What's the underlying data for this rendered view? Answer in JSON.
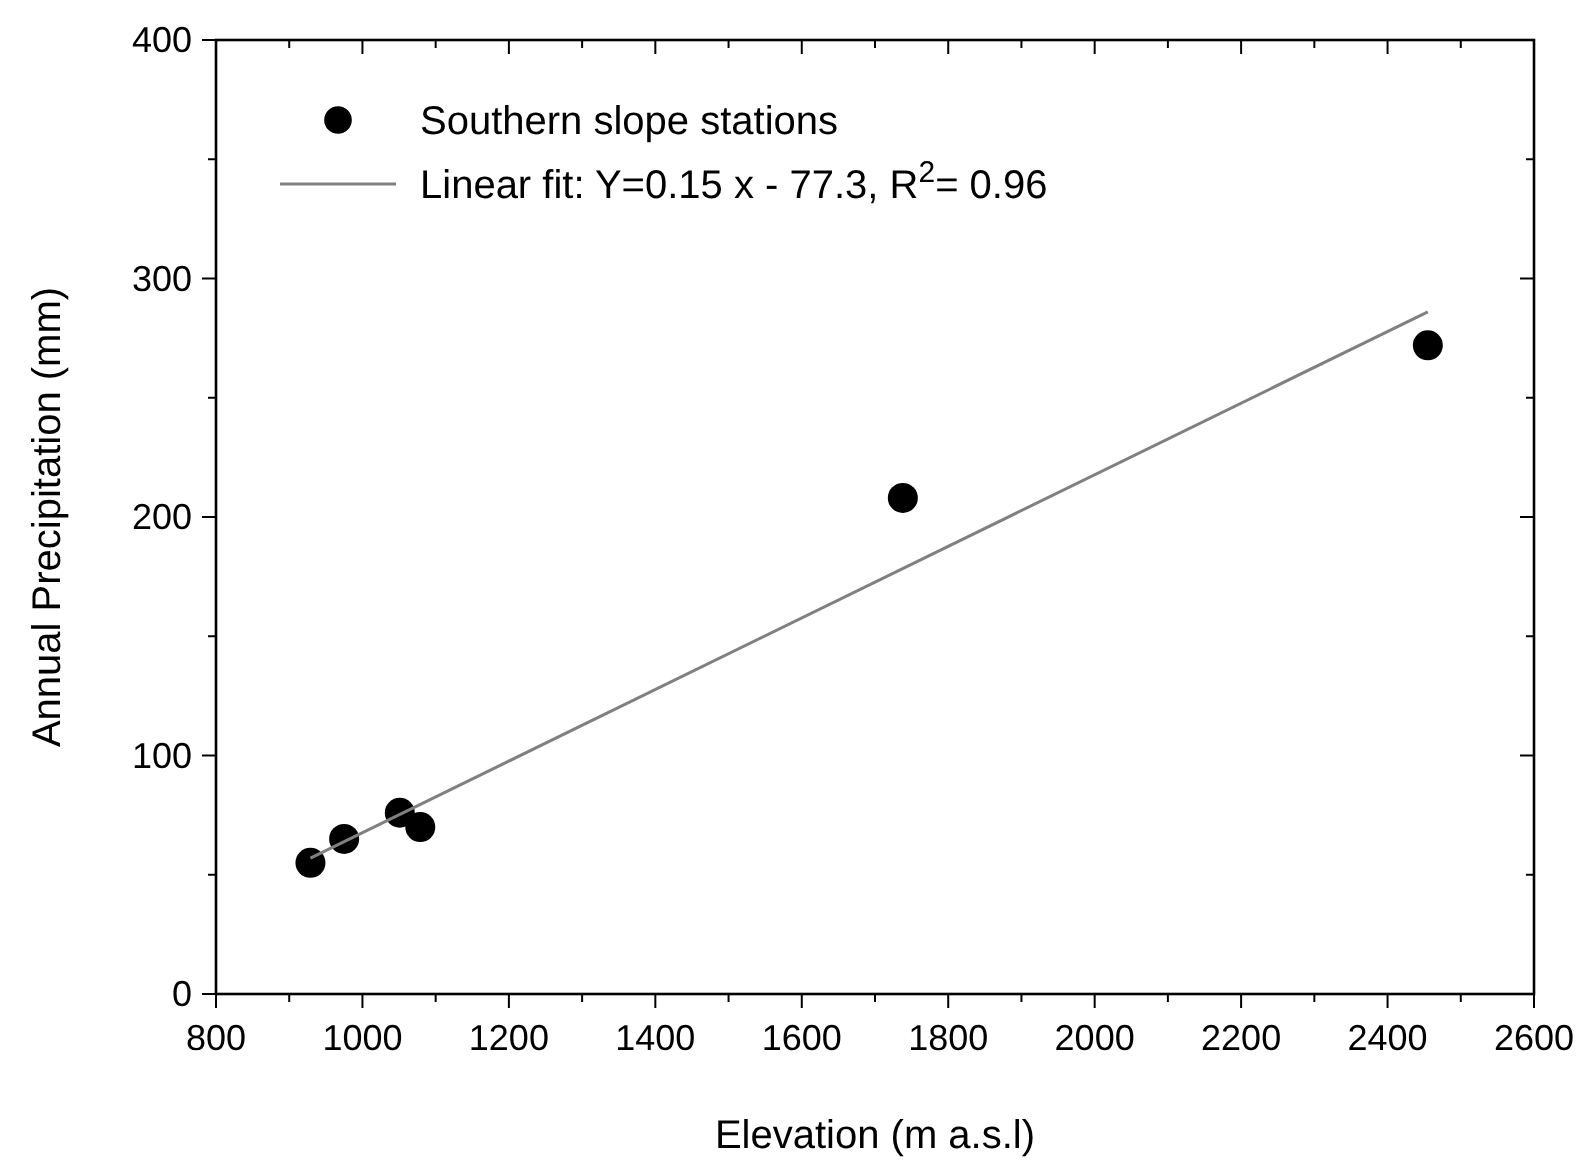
{
  "chart_data": {
    "type": "scatter",
    "xlabel": "Elevation (m  a.s.l)",
    "ylabel": "Annual Precipitation (mm)",
    "xlim": [
      800,
      2600
    ],
    "ylim": [
      0,
      400
    ],
    "xticks": [
      800,
      {
        "value": 900,
        "label": null
      },
      1000,
      {
        "value": 1100,
        "label": null
      },
      1200,
      {
        "value": 1300,
        "label": null
      },
      1400,
      {
        "value": 1500,
        "label": null
      },
      1600,
      {
        "value": 1700,
        "label": null
      },
      1800,
      {
        "value": 1900,
        "label": null
      },
      2000,
      {
        "value": 2100,
        "label": null
      },
      2200,
      {
        "value": 2300,
        "label": null
      },
      2400,
      {
        "value": 2500,
        "label": null
      },
      2600
    ],
    "yticks": [
      0,
      {
        "value": 50,
        "label": null
      },
      100,
      {
        "value": 150,
        "label": null
      },
      200,
      {
        "value": 250,
        "label": null
      },
      300,
      {
        "value": 350,
        "label": null
      },
      400
    ],
    "grid": false,
    "legend": "top left",
    "marker": "circle",
    "series": [
      {
        "name": "Southern slope stations",
        "color": "#000000",
        "x": [
          929,
          975,
          1051,
          1079,
          1738,
          2455
        ],
        "values": [
          55,
          65,
          76,
          70,
          208,
          272
        ]
      },
      {
        "name": "Linear fit: Y=0.15 x - 77.3,  R$^{2}$= 0.96",
        "type": "line",
        "color": "#808080",
        "line_style": "solid",
        "marker": "none",
        "x": [
          929,
          2455
        ],
        "values": [
          57,
          286
        ]
      }
    ]
  }
}
